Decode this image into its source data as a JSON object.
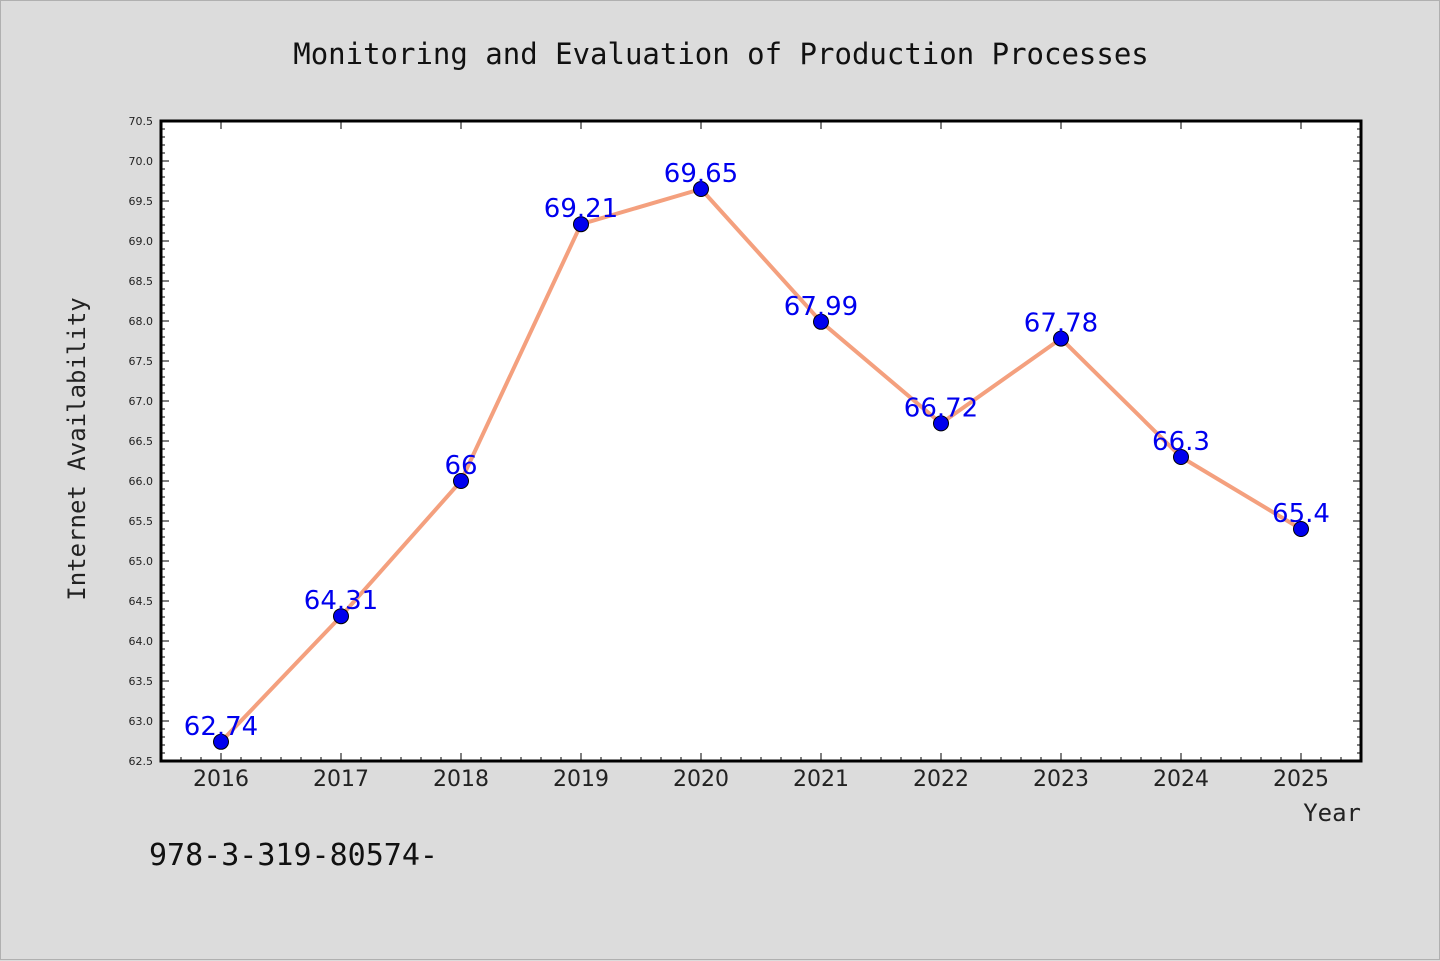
{
  "chart_data": {
    "type": "line",
    "title": "Monitoring and Evaluation of Production Processes",
    "xlabel": "Year",
    "ylabel": "Internet Availability",
    "x": [
      "2016",
      "2017",
      "2018",
      "2019",
      "2020",
      "2021",
      "2022",
      "2023",
      "2024",
      "2025"
    ],
    "y": [
      62.74,
      64.31,
      66,
      69.21,
      69.65,
      67.99,
      66.72,
      67.78,
      66.3,
      65.4
    ],
    "data_labels": [
      "62.74",
      "64.31",
      "66",
      "69.21",
      "69.65",
      "67.99",
      "66.72",
      "67.78",
      "66.3",
      "65.4"
    ],
    "ylim": [
      62.5,
      70.5
    ],
    "yticks": [
      "62.5",
      "63.0",
      "63.5",
      "64.0",
      "64.5",
      "65.0",
      "65.5",
      "66.0",
      "66.5",
      "67.0",
      "67.5",
      "68.0",
      "68.5",
      "69.0",
      "69.5",
      "70.0",
      "70.5"
    ],
    "grid": false,
    "line_color": "#f4a07e",
    "marker_color": "#0000ee",
    "label_color": "#0000ee"
  },
  "footer": {
    "text": "978-3-319-80574-"
  }
}
